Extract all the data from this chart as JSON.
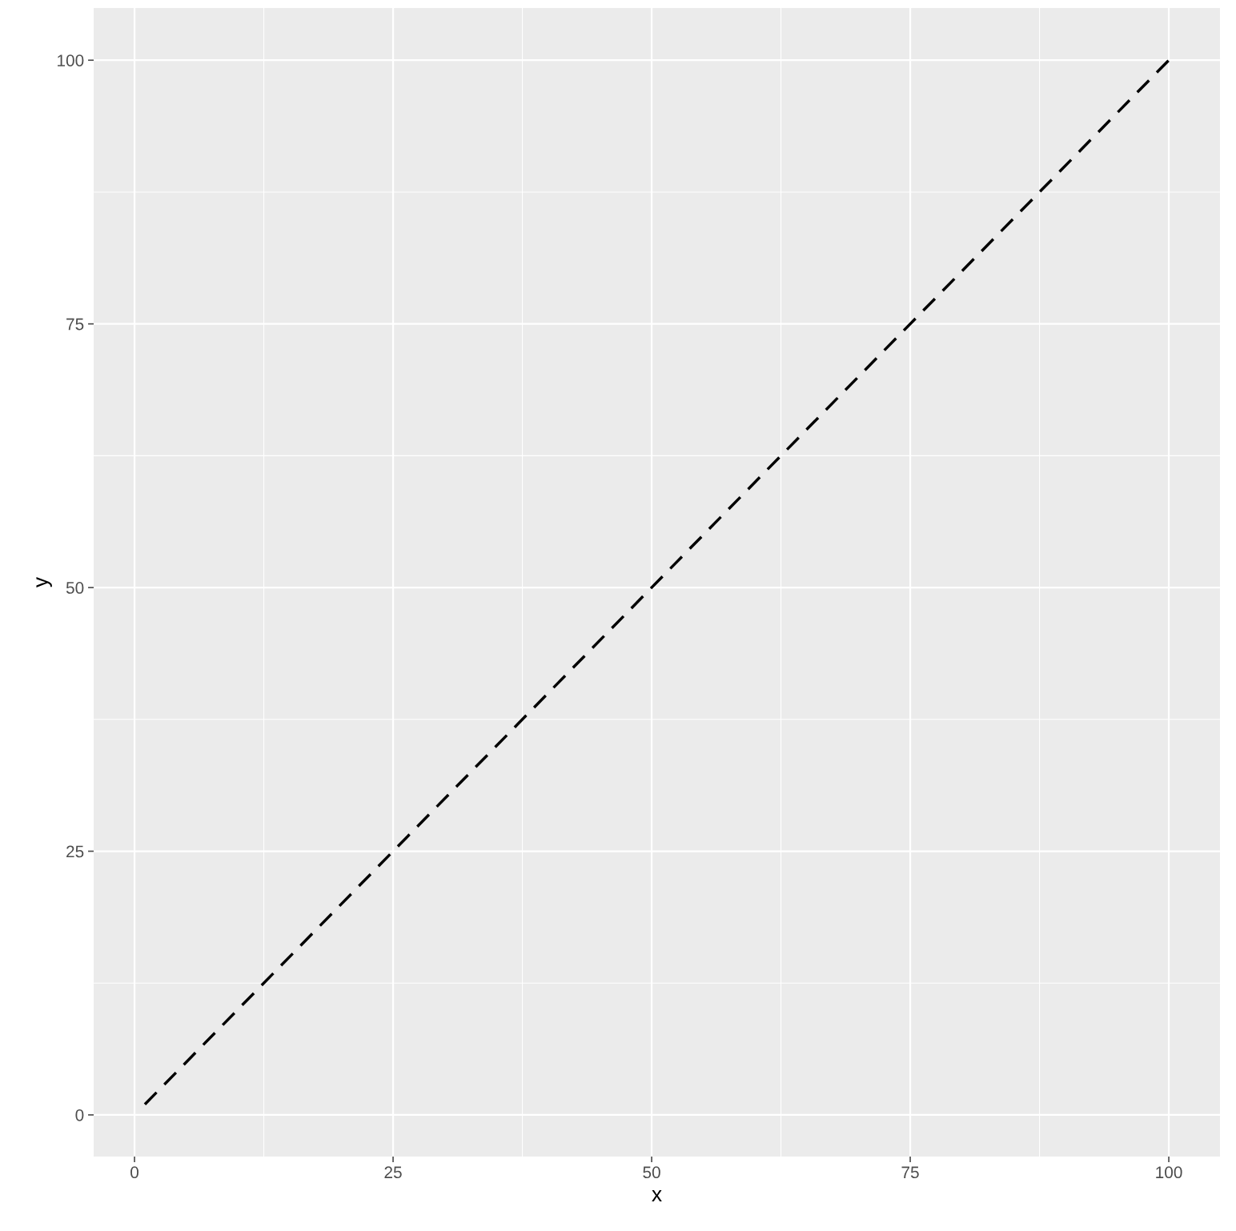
{
  "chart_data": {
    "type": "line",
    "xlabel": "x",
    "ylabel": "y",
    "series": [
      {
        "color": "#000000",
        "x": [
          1,
          100
        ],
        "values": [
          1,
          100
        ]
      }
    ],
    "line_style": "dashed",
    "xlim": [
      -3.95,
      104.95
    ],
    "ylim": [
      -3.95,
      104.95
    ],
    "xticks": [
      0,
      25,
      50,
      75,
      100
    ],
    "yticks": [
      0,
      25,
      50,
      75,
      100
    ],
    "grid": true
  }
}
